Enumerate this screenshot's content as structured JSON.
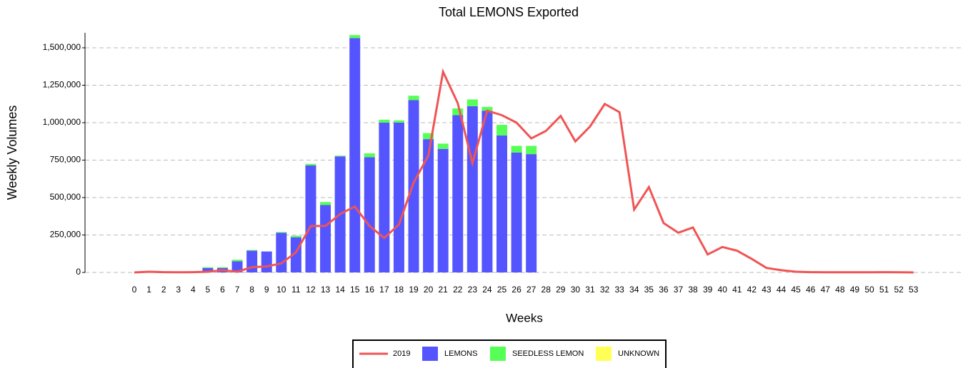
{
  "chart_data": {
    "type": "bar",
    "stacked": true,
    "title": "Total LEMONS Exported",
    "x_label": "Weeks",
    "y_label": "Weekly Volumes",
    "categories": [
      "0",
      "1",
      "2",
      "3",
      "4",
      "5",
      "6",
      "7",
      "8",
      "9",
      "10",
      "11",
      "12",
      "13",
      "14",
      "15",
      "16",
      "17",
      "18",
      "19",
      "20",
      "21",
      "22",
      "23",
      "24",
      "25",
      "26",
      "27",
      "28",
      "29",
      "30",
      "31",
      "32",
      "33",
      "34",
      "35",
      "36",
      "37",
      "38",
      "39",
      "40",
      "41",
      "42",
      "43",
      "44",
      "45",
      "46",
      "47",
      "48",
      "49",
      "50",
      "51",
      "52",
      "53"
    ],
    "series": [
      {
        "name": "2019",
        "type": "line",
        "color": "#f05454",
        "values": [
          0,
          5000,
          2000,
          1000,
          2000,
          5000,
          15000,
          5000,
          35000,
          40000,
          60000,
          135000,
          310000,
          310000,
          390000,
          440000,
          310000,
          230000,
          320000,
          600000,
          780000,
          1340000,
          1130000,
          730000,
          1080000,
          1050000,
          1000000,
          895000,
          945000,
          1045000,
          875000,
          975000,
          1125000,
          1070000,
          420000,
          570000,
          330000,
          265000,
          300000,
          120000,
          170000,
          145000,
          90000,
          30000,
          15000,
          5000,
          2000,
          1000,
          1000,
          1000,
          1000,
          2000,
          1000,
          0
        ]
      },
      {
        "name": "LEMONS",
        "type": "bar",
        "color": "#5555ff",
        "values": [
          0,
          0,
          0,
          0,
          0,
          30000,
          30000,
          75000,
          145000,
          140000,
          265000,
          235000,
          715000,
          450000,
          775000,
          1565000,
          770000,
          1000000,
          1000000,
          1150000,
          890000,
          825000,
          1050000,
          1110000,
          1080000,
          915000,
          800000,
          790000,
          null,
          null,
          null,
          null,
          null,
          null,
          null,
          null,
          null,
          null,
          null,
          null,
          null,
          null,
          null,
          null,
          null,
          null,
          null,
          null,
          null,
          null,
          null,
          null,
          null,
          null
        ]
      },
      {
        "name": "SEEDLESS LEMON",
        "type": "bar",
        "color": "#55ff55",
        "values": [
          0,
          0,
          0,
          0,
          0,
          5000,
          5000,
          10000,
          5000,
          0,
          5000,
          10000,
          10000,
          20000,
          5000,
          20000,
          25000,
          20000,
          15000,
          30000,
          40000,
          35000,
          45000,
          45000,
          25000,
          70000,
          45000,
          55000,
          null,
          null,
          null,
          null,
          null,
          null,
          null,
          null,
          null,
          null,
          null,
          null,
          null,
          null,
          null,
          null,
          null,
          null,
          null,
          null,
          null,
          null,
          null,
          null,
          null,
          null
        ]
      },
      {
        "name": "UNKNOWN",
        "type": "bar",
        "color": "#ffff55",
        "values": [
          0,
          0,
          0,
          0,
          0,
          0,
          0,
          0,
          0,
          0,
          0,
          0,
          0,
          0,
          0,
          0,
          0,
          0,
          0,
          0,
          0,
          0,
          0,
          0,
          0,
          0,
          0,
          0,
          0,
          0,
          0,
          0,
          0,
          0,
          0,
          0,
          0,
          0,
          0,
          0,
          0,
          0,
          0,
          0,
          0,
          0,
          0,
          0,
          0,
          0,
          0,
          0,
          0,
          0
        ]
      }
    ],
    "ylim": [
      0,
      1600000
    ],
    "yticks": [
      {
        "value": 0,
        "label": "0"
      },
      {
        "value": 250000,
        "label": "250,000"
      },
      {
        "value": 500000,
        "label": "500,000"
      },
      {
        "value": 750000,
        "label": "750,000"
      },
      {
        "value": 1000000,
        "label": "1,000,000"
      },
      {
        "value": 1250000,
        "label": "1,250,000"
      },
      {
        "value": 1500000,
        "label": "1,500,000"
      }
    ],
    "grid": true,
    "legend": "bottom"
  }
}
